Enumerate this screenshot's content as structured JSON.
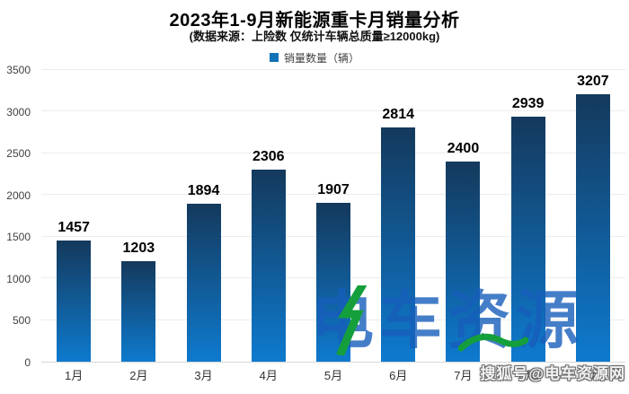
{
  "header": {
    "title": "2023年1-9月新能源重卡月销量分析",
    "subtitle": "(数据来源：上险数  仅统计车辆总质量≥12000kg)"
  },
  "legend": {
    "label": "销量数量（辆）",
    "swatch_color": "#1272b8"
  },
  "chart_data": {
    "type": "bar",
    "categories": [
      "1月",
      "2月",
      "3月",
      "4月",
      "5月",
      "6月",
      "7月",
      "8月",
      "9月"
    ],
    "values": [
      1457,
      1203,
      1894,
      2306,
      1907,
      2814,
      2400,
      2939,
      3207
    ],
    "series_name": "销量数量（辆）",
    "title": "2023年1-9月新能源重卡月销量分析",
    "subtitle": "(数据来源：上险数  仅统计车辆总质量≥12000kg)",
    "xlabel": "",
    "ylabel": "",
    "ylim": [
      0,
      3500
    ],
    "yticks": [
      0,
      500,
      1000,
      1500,
      2000,
      2500,
      3000,
      3500
    ],
    "grid": true,
    "legend_position": "top",
    "bar_gradient_top": "#14395c",
    "bar_gradient_bottom": "#0e7ace"
  },
  "watermarks": {
    "center_text": "电车资源",
    "center_accent_color": "#149f3c",
    "bottom_right": "搜狐号@电车资源网"
  }
}
